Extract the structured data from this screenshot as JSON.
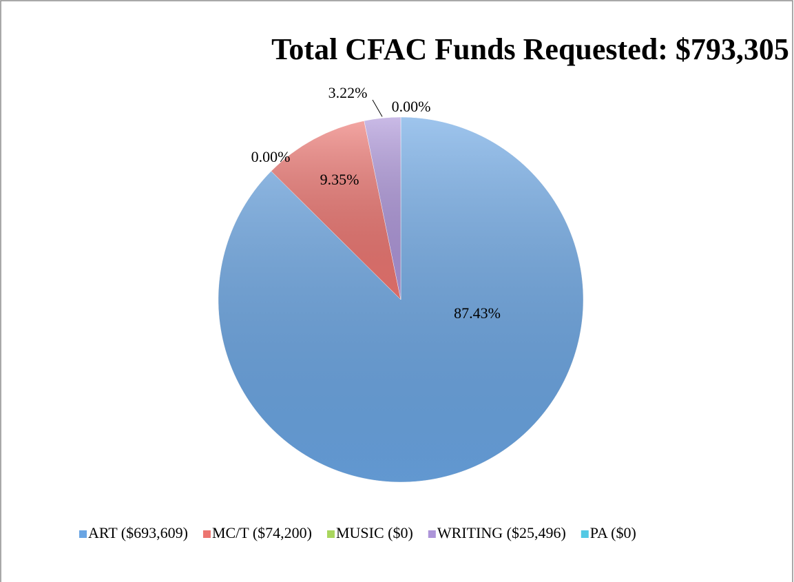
{
  "chart_data": {
    "type": "pie",
    "title": "Total CFAC Funds Requested:  $793,305",
    "categories": [
      "ART ($693,609)",
      "MC/T ($74,200)",
      "MUSIC ($0)",
      "WRITING ($25,496)",
      "PA ($0)"
    ],
    "values": [
      87.43,
      9.35,
      0.0,
      3.22,
      0.0
    ],
    "value_labels": [
      "87.43%",
      "9.35%",
      "0.00%",
      "3.22%",
      "0.00%"
    ],
    "colors": [
      "#6aa5e3",
      "#ec7570",
      "#a9d65e",
      "#ad95d9",
      "#53c9e4"
    ],
    "legend": "bottom"
  }
}
